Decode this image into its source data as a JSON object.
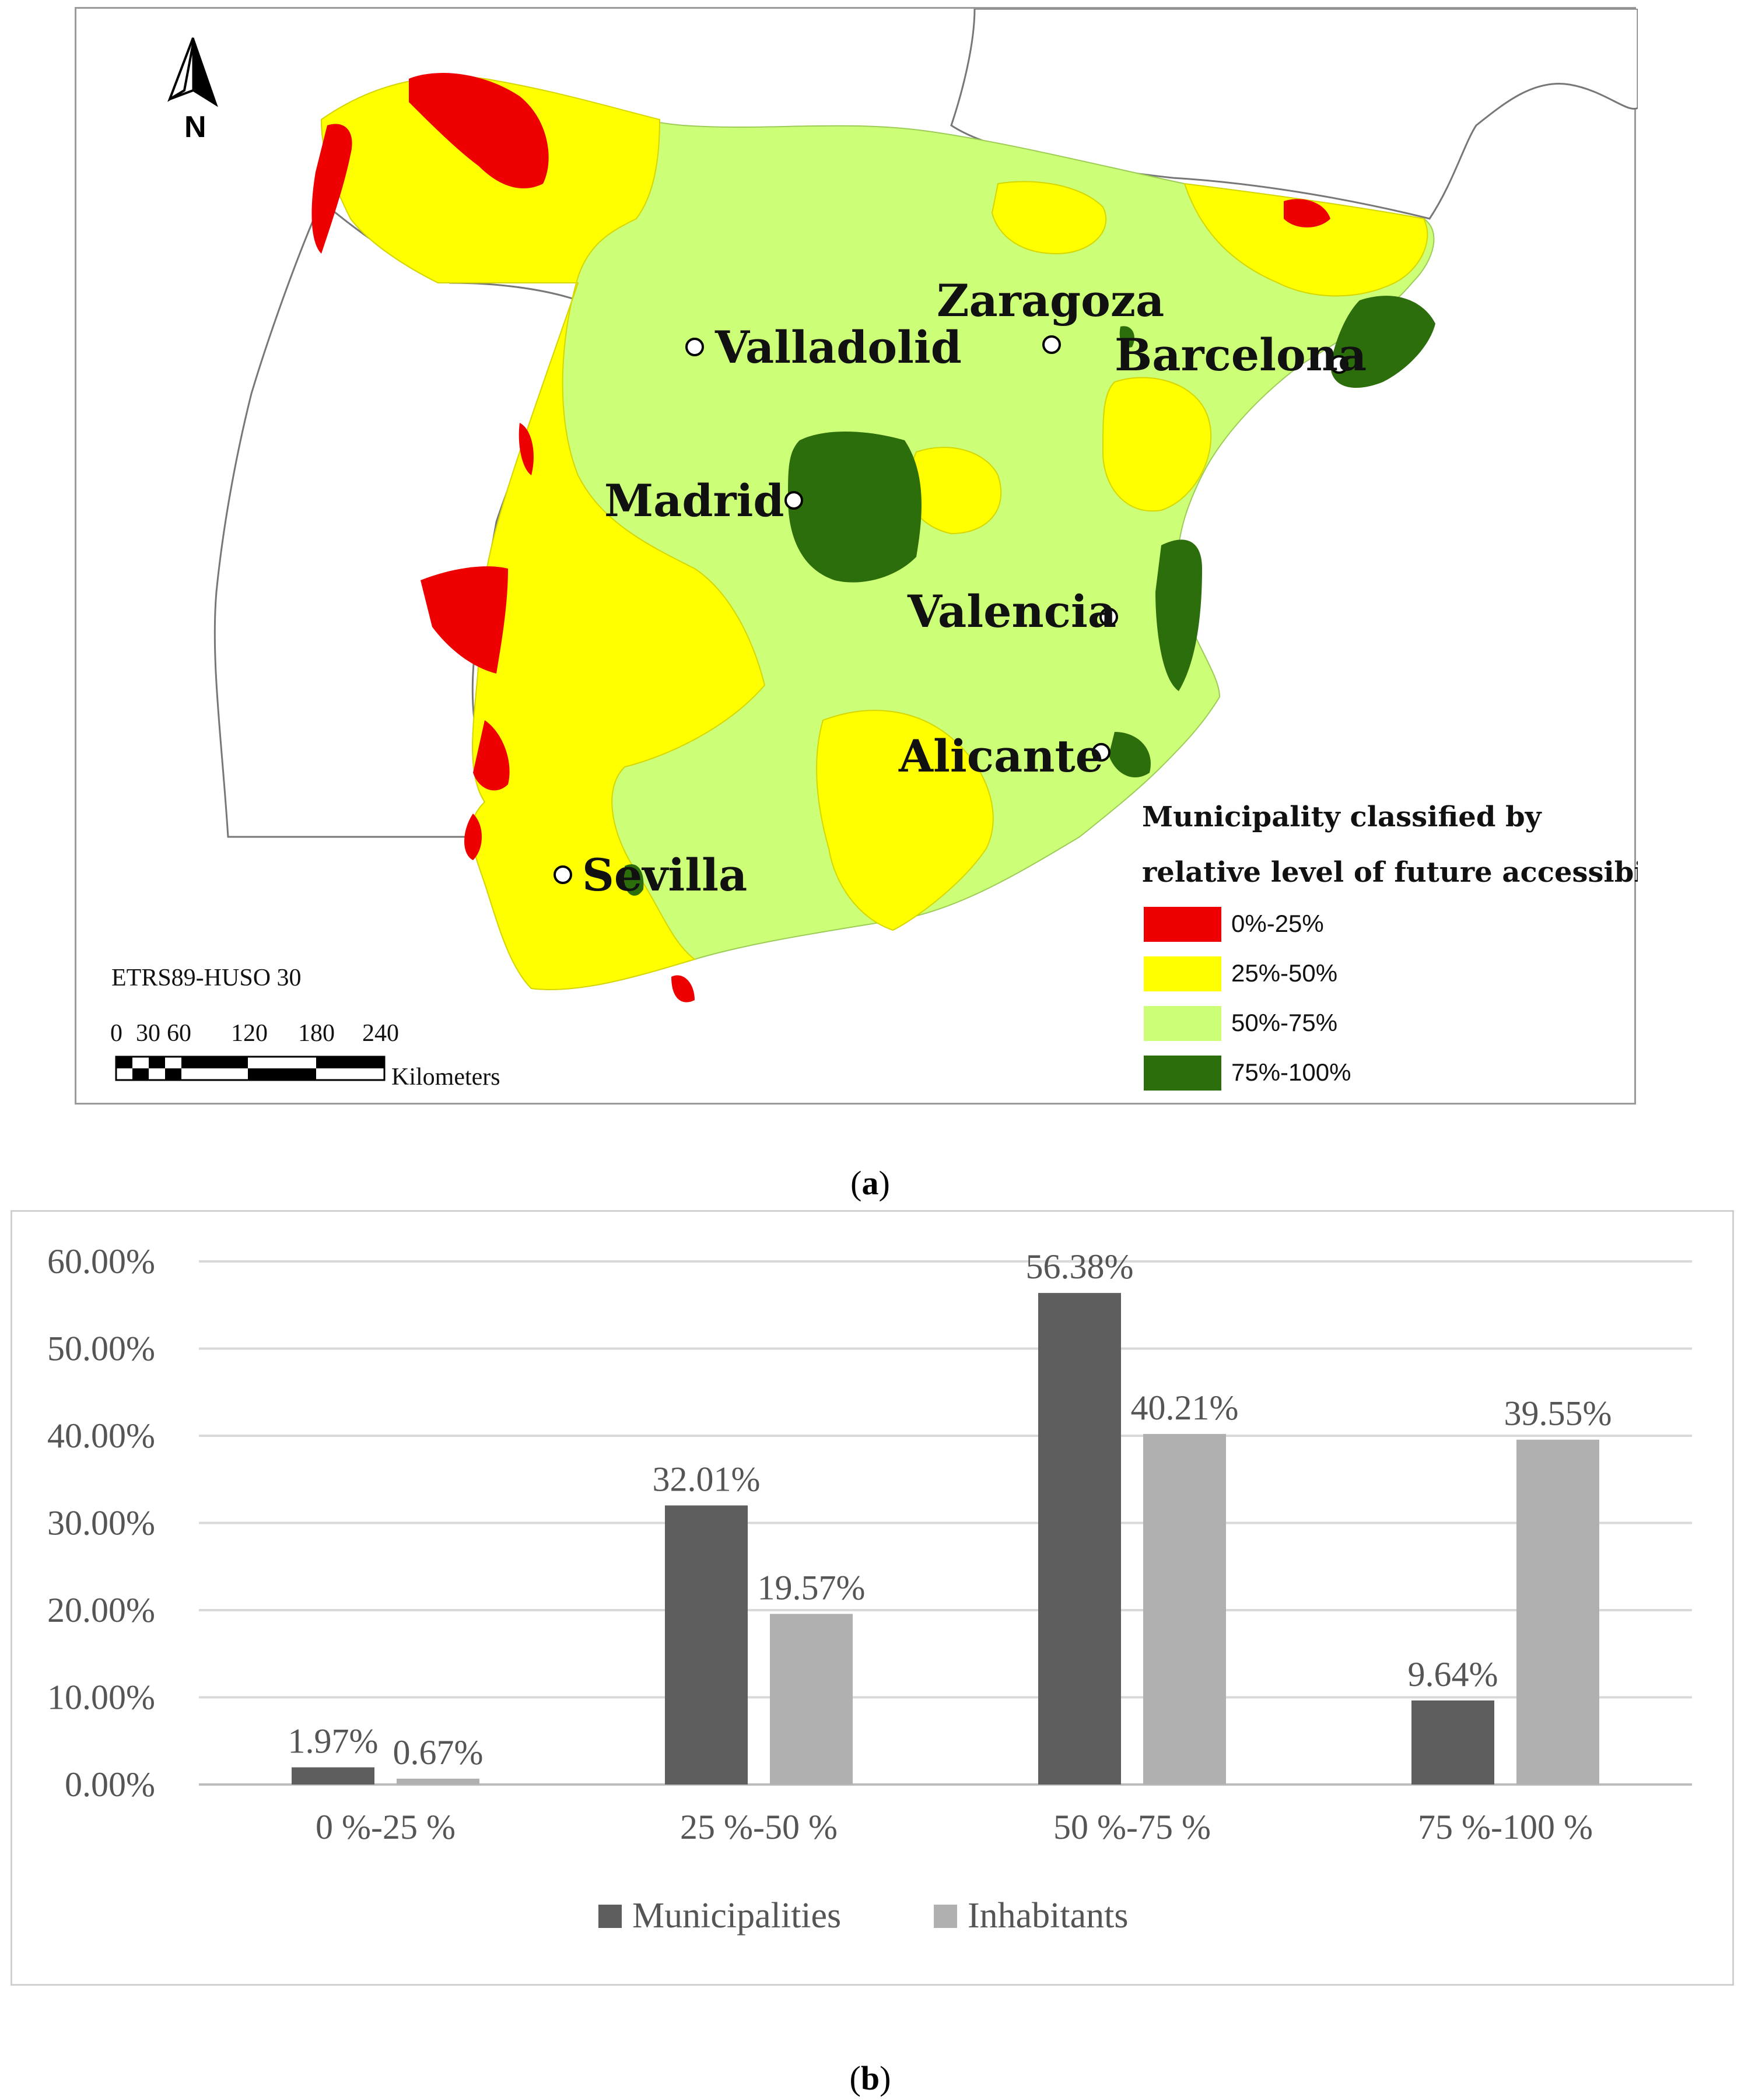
{
  "map": {
    "north_label": "N",
    "projection": "ETRS89-HUSO 30",
    "scale_ticks": [
      "0",
      "30",
      "60",
      "120",
      "180",
      "240"
    ],
    "scale_unit": "Kilometers",
    "cities": [
      "Zaragoza",
      "Valladolid",
      "Barcelona",
      "Madrid",
      "Valencia",
      "Alicante",
      "Sevilla"
    ],
    "legend": {
      "title_line1": "Municipality classified  by",
      "title_line2": "relative level of future accessibility",
      "items": [
        {
          "label": "0%-25%",
          "color": "#ee0000"
        },
        {
          "label": "25%-50%",
          "color": "#ffff00"
        },
        {
          "label": "50%-75%",
          "color": "#ccff77"
        },
        {
          "label": "75%-100%",
          "color": "#2c6e0b"
        }
      ]
    }
  },
  "captions": {
    "a": "a",
    "b": "b"
  },
  "chart_data": {
    "type": "bar",
    "categories": [
      "0 %-25 %",
      "25 %-50 %",
      "50 %-75 %",
      "75 %-100 %"
    ],
    "series": [
      {
        "name": "Municipalities",
        "values": [
          1.97,
          32.01,
          56.38,
          9.64
        ],
        "labels": [
          "1.97%",
          "32.01%",
          "56.38%",
          "9.64%"
        ],
        "color": "#5e5e5e"
      },
      {
        "name": "Inhabitants",
        "values": [
          0.67,
          19.57,
          40.21,
          39.55
        ],
        "labels": [
          "0.67%",
          "19.57%",
          "40.21%",
          "39.55%"
        ],
        "color": "#b0b0b0"
      }
    ],
    "yticks": [
      "0.00%",
      "10.00%",
      "20.00%",
      "30.00%",
      "40.00%",
      "50.00%",
      "60.00%"
    ],
    "ylim": [
      0,
      60
    ],
    "grid": true,
    "legend_position": "bottom"
  }
}
